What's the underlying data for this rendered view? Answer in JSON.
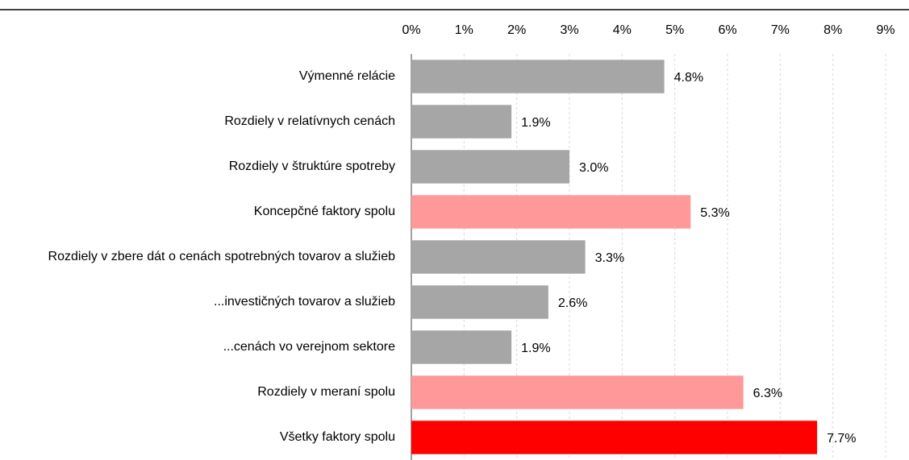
{
  "chart_data": {
    "type": "bar",
    "orientation": "horizontal",
    "categories": [
      "Výmenné relácie",
      "Rozdiely v relatívnych cenách",
      "Rozdiely v štruktúre spotreby",
      "Koncepčné faktory spolu",
      "Rozdiely v zbere dát o cenách spotrebných tovarov a služieb",
      "...investičných tovarov a služieb",
      "...cenách vo verejnom sektore",
      "Rozdiely v meraní spolu",
      "Všetky faktory spolu"
    ],
    "values": [
      4.8,
      1.9,
      3.0,
      5.3,
      3.3,
      2.6,
      1.9,
      6.3,
      7.7
    ],
    "value_labels": [
      "4.8%",
      "1.9%",
      "3.0%",
      "5.3%",
      "3.3%",
      "2.6%",
      "1.9%",
      "6.3%",
      "7.7%"
    ],
    "colors": [
      "#a6a6a6",
      "#a6a6a6",
      "#a6a6a6",
      "#ff9999",
      "#a6a6a6",
      "#a6a6a6",
      "#a6a6a6",
      "#ff9999",
      "#ff0000"
    ],
    "xlim": [
      0,
      9
    ],
    "xticks": [
      {
        "value": 0,
        "label": "0%"
      },
      {
        "value": 1,
        "label": "1%"
      },
      {
        "value": 2,
        "label": "2%"
      },
      {
        "value": 3,
        "label": "3%"
      },
      {
        "value": 4,
        "label": "4%"
      },
      {
        "value": 5,
        "label": "5%"
      },
      {
        "value": 6,
        "label": "6%"
      },
      {
        "value": 7,
        "label": "7%"
      },
      {
        "value": 8,
        "label": "8%"
      },
      {
        "value": 9,
        "label": "9%"
      }
    ],
    "grid": true
  }
}
